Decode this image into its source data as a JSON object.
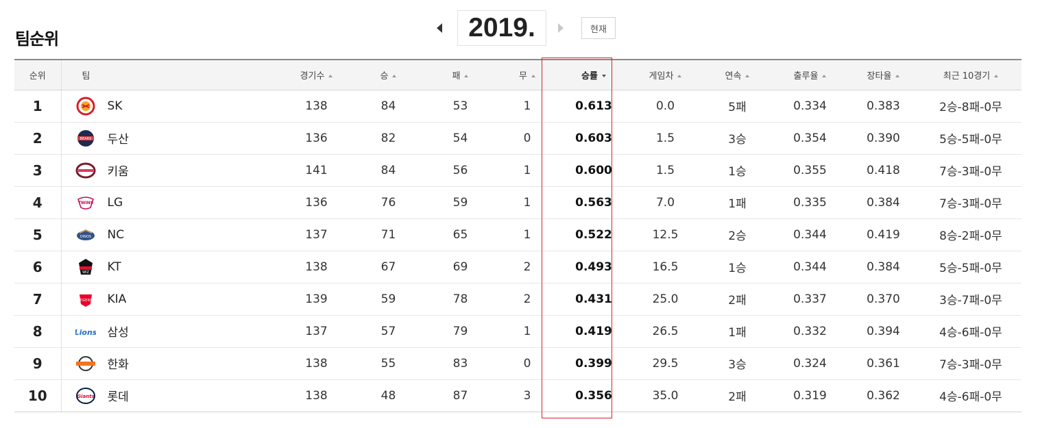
{
  "page_title": "팀순위",
  "year_nav": {
    "year": "2019.",
    "now_label": "현재"
  },
  "table": {
    "headers": {
      "rank": "순위",
      "team": "팀",
      "games": "경기수",
      "wins": "승",
      "losses": "패",
      "draws": "무",
      "pct": "승률",
      "gb": "게임차",
      "streak": "연속",
      "obp": "출루율",
      "slg": "장타율",
      "last10": "최근 10경기"
    },
    "rows": [
      {
        "rank": "1",
        "team": "SK",
        "games": "138",
        "wins": "84",
        "losses": "53",
        "draws": "1",
        "pct": "0.613",
        "gb": "0.0",
        "streak": "5패",
        "obp": "0.334",
        "slg": "0.383",
        "last10": "2승-8패-0무"
      },
      {
        "rank": "2",
        "team": "두산",
        "games": "136",
        "wins": "82",
        "losses": "54",
        "draws": "0",
        "pct": "0.603",
        "gb": "1.5",
        "streak": "3승",
        "obp": "0.354",
        "slg": "0.390",
        "last10": "5승-5패-0무"
      },
      {
        "rank": "3",
        "team": "키움",
        "games": "141",
        "wins": "84",
        "losses": "56",
        "draws": "1",
        "pct": "0.600",
        "gb": "1.5",
        "streak": "1승",
        "obp": "0.355",
        "slg": "0.418",
        "last10": "7승-3패-0무"
      },
      {
        "rank": "4",
        "team": "LG",
        "games": "136",
        "wins": "76",
        "losses": "59",
        "draws": "1",
        "pct": "0.563",
        "gb": "7.0",
        "streak": "1패",
        "obp": "0.335",
        "slg": "0.384",
        "last10": "7승-3패-0무"
      },
      {
        "rank": "5",
        "team": "NC",
        "games": "137",
        "wins": "71",
        "losses": "65",
        "draws": "1",
        "pct": "0.522",
        "gb": "12.5",
        "streak": "2승",
        "obp": "0.344",
        "slg": "0.419",
        "last10": "8승-2패-0무"
      },
      {
        "rank": "6",
        "team": "KT",
        "games": "138",
        "wins": "67",
        "losses": "69",
        "draws": "2",
        "pct": "0.493",
        "gb": "16.5",
        "streak": "1승",
        "obp": "0.344",
        "slg": "0.384",
        "last10": "5승-5패-0무"
      },
      {
        "rank": "7",
        "team": "KIA",
        "games": "139",
        "wins": "59",
        "losses": "78",
        "draws": "2",
        "pct": "0.431",
        "gb": "25.0",
        "streak": "2패",
        "obp": "0.337",
        "slg": "0.370",
        "last10": "3승-7패-0무"
      },
      {
        "rank": "8",
        "team": "삼성",
        "games": "137",
        "wins": "57",
        "losses": "79",
        "draws": "1",
        "pct": "0.419",
        "gb": "26.5",
        "streak": "1패",
        "obp": "0.332",
        "slg": "0.394",
        "last10": "4승-6패-0무"
      },
      {
        "rank": "9",
        "team": "한화",
        "games": "138",
        "wins": "55",
        "losses": "83",
        "draws": "0",
        "pct": "0.399",
        "gb": "29.5",
        "streak": "3승",
        "obp": "0.324",
        "slg": "0.361",
        "last10": "7승-3패-0무"
      },
      {
        "rank": "10",
        "team": "롯데",
        "games": "138",
        "wins": "48",
        "losses": "87",
        "draws": "3",
        "pct": "0.356",
        "gb": "35.0",
        "streak": "2패",
        "obp": "0.319",
        "slg": "0.362",
        "last10": "4승-6패-0무"
      }
    ]
  },
  "logo_icons": [
    "sk-logo-icon",
    "doosan-logo-icon",
    "kiwoom-logo-icon",
    "lg-logo-icon",
    "nc-logo-icon",
    "kt-logo-icon",
    "kia-logo-icon",
    "samsung-logo-icon",
    "hanwha-logo-icon",
    "lotte-logo-icon"
  ],
  "colors": {
    "highlight": "#d6232a",
    "header_bg": "#f4f4f4",
    "header_border": "#888888"
  }
}
